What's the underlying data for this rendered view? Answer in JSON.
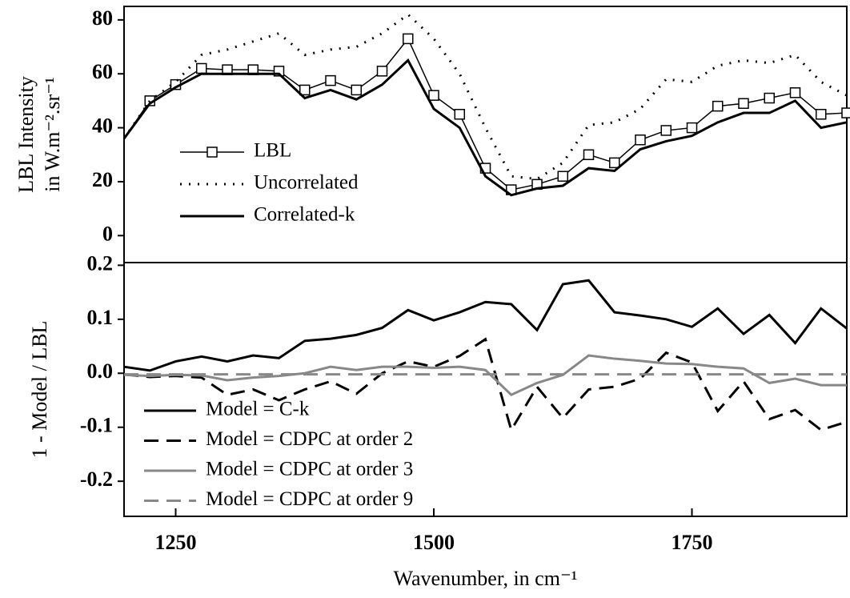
{
  "chart_data": [
    {
      "type": "line",
      "ylabel": [
        "LBL Intensity",
        "in W.m⁻².sr⁻¹"
      ],
      "x": [
        1200,
        1225,
        1250,
        1275,
        1300,
        1325,
        1350,
        1375,
        1400,
        1425,
        1450,
        1475,
        1500,
        1525,
        1550,
        1575,
        1600,
        1625,
        1650,
        1675,
        1700,
        1725,
        1750,
        1775,
        1800,
        1825,
        1850,
        1875,
        1900
      ],
      "xlim": [
        1200,
        1900
      ],
      "ylim": [
        -10,
        85
      ],
      "yticks": [
        0,
        20,
        40,
        60,
        80
      ],
      "legend": "center left",
      "series": [
        {
          "name": "LBL",
          "color": "#000000",
          "style": "solid",
          "width": 1.5,
          "marker": "square",
          "values": [
            36,
            50,
            56,
            62,
            61.5,
            61.5,
            61,
            54,
            57.5,
            54,
            61,
            73,
            52,
            45,
            25,
            17,
            19,
            22,
            30,
            27,
            35.5,
            39,
            40,
            48,
            49,
            51,
            53,
            45,
            45.5
          ]
        },
        {
          "name": "Uncorrelated",
          "color": "#000000",
          "style": "dotted",
          "width": 3,
          "values": [
            36,
            50,
            57,
            67,
            69,
            72,
            75,
            67,
            69,
            70,
            75,
            82,
            73,
            60,
            40,
            22,
            21,
            27,
            41,
            42,
            47,
            58,
            57,
            63,
            65,
            64,
            67,
            57,
            52
          ]
        },
        {
          "name": "Correlated-k",
          "color": "#000000",
          "style": "solid",
          "width": 3,
          "values": [
            36,
            49,
            55,
            60,
            60,
            60,
            60,
            51,
            54,
            50.5,
            56,
            65,
            47,
            40,
            22,
            15,
            17.5,
            18.5,
            25,
            24,
            32,
            35,
            37,
            42,
            45.5,
            45.5,
            50,
            40,
            42
          ]
        }
      ]
    },
    {
      "type": "line",
      "ylabel": [
        "1 - Model / LBL"
      ],
      "xlabel": "Wavenumber, in cm⁻¹",
      "x": [
        1200,
        1225,
        1250,
        1275,
        1300,
        1325,
        1350,
        1375,
        1400,
        1425,
        1450,
        1475,
        1500,
        1525,
        1550,
        1575,
        1600,
        1625,
        1650,
        1675,
        1700,
        1725,
        1750,
        1775,
        1800,
        1825,
        1850,
        1875,
        1900
      ],
      "xlim": [
        1200,
        1900
      ],
      "xticks": [
        1250,
        1500,
        1750
      ],
      "ylim": [
        -0.265,
        0.205
      ],
      "yticks": [
        {
          "value": -0.2,
          "label": "-0.2"
        },
        {
          "value": -0.1,
          "label": "-0.1"
        },
        {
          "value": 0,
          "label": "0.0"
        },
        {
          "value": 0.1,
          "label": "0.1"
        },
        {
          "value": 0.2,
          "label": "0.2"
        }
      ],
      "legend": "lower left",
      "series": [
        {
          "name": "Model = C-k",
          "color": "#000000",
          "style": "solid",
          "width": 3,
          "values": [
            0.012,
            0.005,
            0.022,
            0.031,
            0.022,
            0.033,
            0.028,
            0.06,
            0.064,
            0.071,
            0.084,
            0.117,
            0.098,
            0.113,
            0.132,
            0.128,
            0.08,
            0.165,
            0.172,
            0.113,
            0.107,
            0.1,
            0.086,
            0.12,
            0.073,
            0.108,
            0.056,
            0.12,
            0.083
          ]
        },
        {
          "name": "Model = CDPC at order 2",
          "color": "#000000",
          "style": "dashed",
          "width": 3,
          "values": [
            -0.002,
            -0.007,
            -0.005,
            -0.008,
            -0.04,
            -0.03,
            -0.05,
            -0.03,
            -0.015,
            -0.038,
            0,
            0.022,
            0.012,
            0.032,
            0.063,
            -0.105,
            -0.025,
            -0.083,
            -0.03,
            -0.025,
            -0.01,
            0.038,
            0.02,
            -0.07,
            -0.015,
            -0.085,
            -0.068,
            -0.105,
            -0.09
          ]
        },
        {
          "name": "Model = CDPC at order 3",
          "color": "#888888",
          "style": "solid",
          "width": 3,
          "values": [
            -0.003,
            -0.005,
            -0.003,
            -0.004,
            -0.013,
            -0.008,
            -0.005,
            0,
            0.012,
            0.006,
            0.012,
            0.012,
            0.01,
            0.012,
            0.006,
            -0.04,
            -0.018,
            -0.003,
            0.033,
            0.027,
            0.023,
            0.018,
            0.017,
            0.012,
            0.009,
            -0.018,
            -0.01,
            -0.022,
            -0.022
          ]
        },
        {
          "name": "Model = CDPC at order 9",
          "color": "#888888",
          "style": "dashed",
          "width": 3,
          "values": [
            -0.002,
            -0.002,
            -0.002,
            -0.002,
            -0.002,
            -0.002,
            -0.002,
            -0.002,
            -0.002,
            -0.002,
            -0.002,
            -0.002,
            -0.002,
            -0.002,
            -0.002,
            -0.002,
            -0.002,
            -0.002,
            -0.002,
            -0.002,
            -0.002,
            -0.002,
            -0.002,
            -0.002,
            -0.002,
            -0.002,
            -0.002,
            -0.002,
            -0.002
          ]
        }
      ]
    }
  ]
}
